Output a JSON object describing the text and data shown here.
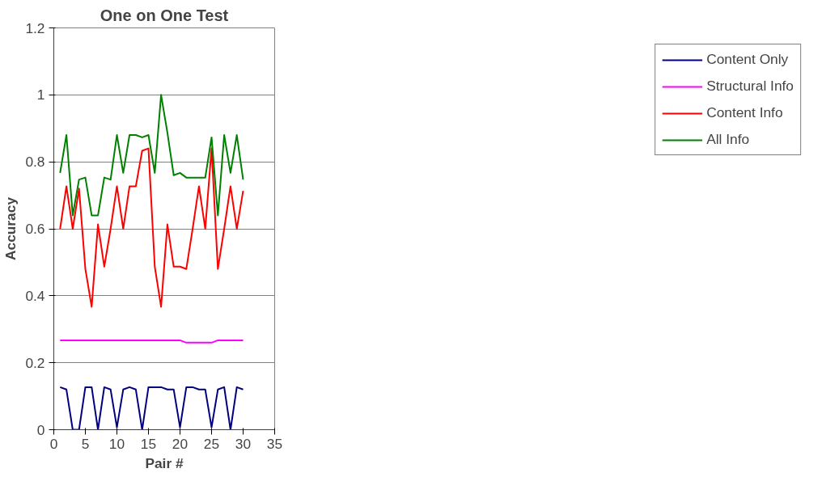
{
  "chart_data": {
    "type": "line",
    "title": "One on One Test",
    "xlabel": "Pair #",
    "ylabel": "Accuracy",
    "x": [
      1,
      2,
      3,
      4,
      5,
      6,
      7,
      8,
      9,
      10,
      11,
      12,
      13,
      14,
      15,
      16,
      17,
      18,
      19,
      20,
      21,
      22,
      23,
      24,
      25,
      26,
      27,
      28,
      29,
      30
    ],
    "series": [
      {
        "name": "Content Only",
        "color": "#000080",
        "values": [
          0.127,
          0.12,
          0,
          0,
          0.127,
          0.127,
          0,
          0.127,
          0.12,
          0.007,
          0.12,
          0.127,
          0.12,
          0,
          0.127,
          0.127,
          0.127,
          0.12,
          0.12,
          0.007,
          0.127,
          0.127,
          0.12,
          0.12,
          0.007,
          0.12,
          0.127,
          0,
          0.127,
          0.12
        ]
      },
      {
        "name": "Structural Info",
        "color": "#ff00ff",
        "values": [
          0.267,
          0.267,
          0.267,
          0.267,
          0.267,
          0.267,
          0.267,
          0.267,
          0.267,
          0.267,
          0.267,
          0.267,
          0.267,
          0.267,
          0.267,
          0.267,
          0.267,
          0.267,
          0.267,
          0.267,
          0.26,
          0.26,
          0.26,
          0.26,
          0.26,
          0.267,
          0.267,
          0.267,
          0.267,
          0.267
        ]
      },
      {
        "name": "Content Info",
        "color": "#ff0000",
        "values": [
          0.6,
          0.727,
          0.6,
          0.72,
          0.48,
          0.367,
          0.613,
          0.487,
          0.6,
          0.727,
          0.6,
          0.727,
          0.727,
          0.833,
          0.84,
          0.487,
          0.367,
          0.613,
          0.487,
          0.487,
          0.48,
          0.6,
          0.727,
          0.6,
          0.84,
          0.48,
          0.6,
          0.727,
          0.6,
          0.713
        ]
      },
      {
        "name": "All Info",
        "color": "#008000",
        "values": [
          0.767,
          0.88,
          0.64,
          0.747,
          0.753,
          0.64,
          0.64,
          0.753,
          0.747,
          0.88,
          0.767,
          0.88,
          0.88,
          0.873,
          0.88,
          0.767,
          1.0,
          0.887,
          0.76,
          0.767,
          0.753,
          0.753,
          0.753,
          0.753,
          0.873,
          0.64,
          0.88,
          0.767,
          0.88,
          0.747
        ]
      }
    ],
    "xlim": [
      0,
      35
    ],
    "xticks": [
      0,
      5,
      10,
      15,
      20,
      25,
      30,
      35
    ],
    "ylim": [
      0,
      1.2
    ],
    "yticks": [
      0,
      0.2,
      0.4,
      0.6,
      0.8,
      1,
      1.2
    ],
    "grid": "y",
    "legend": "right",
    "marker": "none",
    "line_style": "solid"
  }
}
